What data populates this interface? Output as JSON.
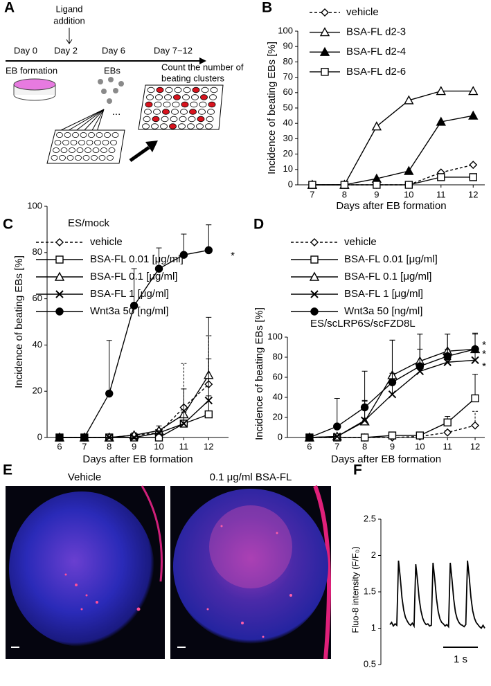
{
  "panel_labels": [
    "A",
    "B",
    "C",
    "D",
    "E",
    "F"
  ],
  "panel_a": {
    "ligand_addition": [
      "Ligand",
      "addition"
    ],
    "days": [
      "Day 0",
      "Day 2",
      "Day 6",
      "Day 7~12"
    ],
    "stages": [
      "EB formation",
      "EBs"
    ],
    "ellipsis": "...",
    "count": [
      "Count the number of",
      "beating clusters"
    ]
  },
  "panel_e": {
    "titles": [
      "Vehicle",
      "0.1 μg/ml BSA-FL"
    ]
  },
  "chart_data": [
    {
      "type": "line",
      "xlabel": "Days after EB formation",
      "ylabel": "Incidence of beating EBs [%]",
      "x": [
        7,
        8,
        9,
        10,
        11,
        12
      ],
      "xlim": [
        6.55,
        12.36
      ],
      "xticks": [
        7,
        8,
        9,
        10,
        11,
        12
      ],
      "ylim": [
        0,
        100
      ],
      "yticks": [
        0,
        10,
        20,
        30,
        40,
        50,
        60,
        70,
        80,
        90,
        100
      ],
      "series": [
        {
          "name": "vehicle",
          "color": "#000000",
          "marker": "diamond",
          "marker_fill": "#ffffff",
          "dashed": true,
          "values": [
            0,
            0,
            0,
            0,
            8,
            13
          ]
        },
        {
          "name": "BSA-FL d2-3",
          "color": "#000000",
          "marker": "triangle",
          "marker_fill": "#ffffff",
          "values": [
            0,
            0,
            38,
            55,
            61,
            61
          ]
        },
        {
          "name": "BSA-FL d2-4",
          "color": "#000000",
          "marker": "triangle",
          "marker_fill": "#000000",
          "values": [
            0,
            0,
            4,
            9,
            41,
            45
          ]
        },
        {
          "name": "BSA-FL d2-6",
          "color": "#000000",
          "marker": "square",
          "marker_fill": "#ffffff",
          "values": [
            0,
            0,
            0,
            0,
            5,
            5
          ]
        }
      ]
    },
    {
      "type": "line",
      "xlabel": "Days after EB formation",
      "ylabel": "Incidence of beating EBs [%]",
      "annotations": [
        "ES/mock",
        "*"
      ],
      "x": [
        6,
        7,
        8,
        9,
        10,
        11,
        12
      ],
      "xlim": [
        5.5,
        12.8
      ],
      "xticks": [
        6,
        7,
        8,
        9,
        10,
        11,
        12
      ],
      "ylim": [
        0,
        100
      ],
      "yticks": [
        0,
        20,
        40,
        60,
        80,
        100
      ],
      "series": [
        {
          "name": "vehicle",
          "color": "#000000",
          "marker": "diamond",
          "marker_fill": "#ffffff",
          "dashed": true,
          "values": [
            0,
            0,
            0,
            1,
            2,
            13,
            23
          ],
          "errors": [
            0,
            0,
            0,
            1,
            1,
            19,
            21
          ]
        },
        {
          "name": "BSA-FL 0.01 [μg/ml]",
          "color": "#000000",
          "marker": "square",
          "marker_fill": "#ffffff",
          "values": [
            0,
            0,
            0,
            0,
            0,
            6,
            10
          ],
          "errors": [
            0,
            0,
            0,
            0,
            0,
            4,
            8
          ]
        },
        {
          "name": "BSA-FL 0.1 [μg/ml]",
          "color": "#000000",
          "marker": "triangle",
          "marker_fill": "#ffffff",
          "values": [
            0,
            0,
            0,
            1,
            3,
            10,
            27
          ],
          "errors": [
            0,
            0,
            0,
            1,
            2,
            11,
            25
          ]
        },
        {
          "name": "BSA-FL 1 [μg/ml]",
          "color": "#000000",
          "marker": "x",
          "values": [
            0,
            0,
            0,
            0,
            2,
            6,
            16
          ],
          "errors": [
            0,
            0,
            0,
            0,
            1,
            5,
            18
          ]
        },
        {
          "name": "Wnt3a 50 [ng/ml]",
          "color": "#000000",
          "marker": "circle",
          "marker_fill": "#000000",
          "values": [
            0,
            0,
            19,
            57,
            73,
            79,
            81
          ],
          "errors": [
            0,
            0,
            23,
            16,
            9,
            9,
            11
          ]
        }
      ]
    },
    {
      "type": "line",
      "xlabel": "Days after EB formation",
      "ylabel": "Incidence of beating EBs [%]",
      "annotations": [
        "ES/scLRP6S/scFZD8L",
        "*",
        "*",
        "*"
      ],
      "x": [
        6,
        7,
        8,
        9,
        10,
        11,
        12
      ],
      "xlim": [
        5.2,
        12.35
      ],
      "xticks": [
        6,
        7,
        8,
        9,
        10,
        11,
        12
      ],
      "ylim": [
        0,
        100
      ],
      "yticks": [
        0,
        20,
        40,
        60,
        80,
        100
      ],
      "series": [
        {
          "name": "vehicle",
          "color": "#000000",
          "marker": "diamond",
          "marker_fill": "#ffffff",
          "dashed": true,
          "values": [
            0,
            0,
            0,
            0,
            1,
            5,
            12
          ],
          "errors": [
            0,
            0,
            0,
            0,
            1,
            2,
            14
          ]
        },
        {
          "name": "BSA-FL 0.01 [μg/ml]",
          "color": "#000000",
          "marker": "square",
          "marker_fill": "#ffffff",
          "values": [
            0,
            0,
            0,
            2,
            2,
            15,
            39
          ],
          "errors": [
            0,
            0,
            0,
            1,
            1,
            6,
            24
          ]
        },
        {
          "name": "BSA-FL 0.1 [μg/ml]",
          "color": "#000000",
          "marker": "triangle",
          "marker_fill": "#ffffff",
          "values": [
            0,
            1,
            16,
            62,
            76,
            86,
            88
          ],
          "errors": [
            0,
            1,
            20,
            35,
            27,
            17,
            16
          ]
        },
        {
          "name": "BSA-FL 1 [μg/ml]",
          "color": "#000000",
          "marker": "x",
          "values": [
            0,
            1,
            17,
            43,
            66,
            75,
            77
          ],
          "errors": [
            0,
            1,
            20,
            21,
            22,
            13,
            12
          ]
        },
        {
          "name": "Wnt3a 50 [ng/ml]",
          "color": "#000000",
          "marker": "circle",
          "marker_fill": "#000000",
          "values": [
            0,
            11,
            30,
            55,
            71,
            81,
            88
          ],
          "errors": [
            0,
            28,
            36,
            42,
            32,
            22,
            15
          ]
        }
      ]
    },
    {
      "type": "line",
      "ylabel": "Fluo-8 intensity (F/F₀)",
      "annotations": [
        "1 s"
      ],
      "ylim": [
        0.5,
        2.5
      ],
      "yticks": [
        0.5,
        1,
        1.5,
        2,
        2.5
      ],
      "series": [
        {
          "color": "#000000",
          "values": [
            1.05,
            1.08,
            1.03,
            1.06,
            1.04,
            1.93,
            1.7,
            1.42,
            1.25,
            1.15,
            1.1,
            1.06,
            1.04,
            1.07,
            1.03,
            1.88,
            1.66,
            1.4,
            1.24,
            1.14,
            1.08,
            1.05,
            1.06,
            1.03,
            1.04,
            1.9,
            1.68,
            1.41,
            1.23,
            1.13,
            1.08,
            1.06,
            1.03,
            1.05,
            1.02,
            1.9,
            1.67,
            1.4,
            1.22,
            1.13,
            1.08,
            1.05,
            1.04,
            1.02,
            1.05,
            1.93,
            1.7,
            1.42,
            1.24,
            1.14,
            1.08,
            1.05,
            1.02,
            1.0,
            1.04,
            1.0
          ]
        }
      ]
    }
  ]
}
